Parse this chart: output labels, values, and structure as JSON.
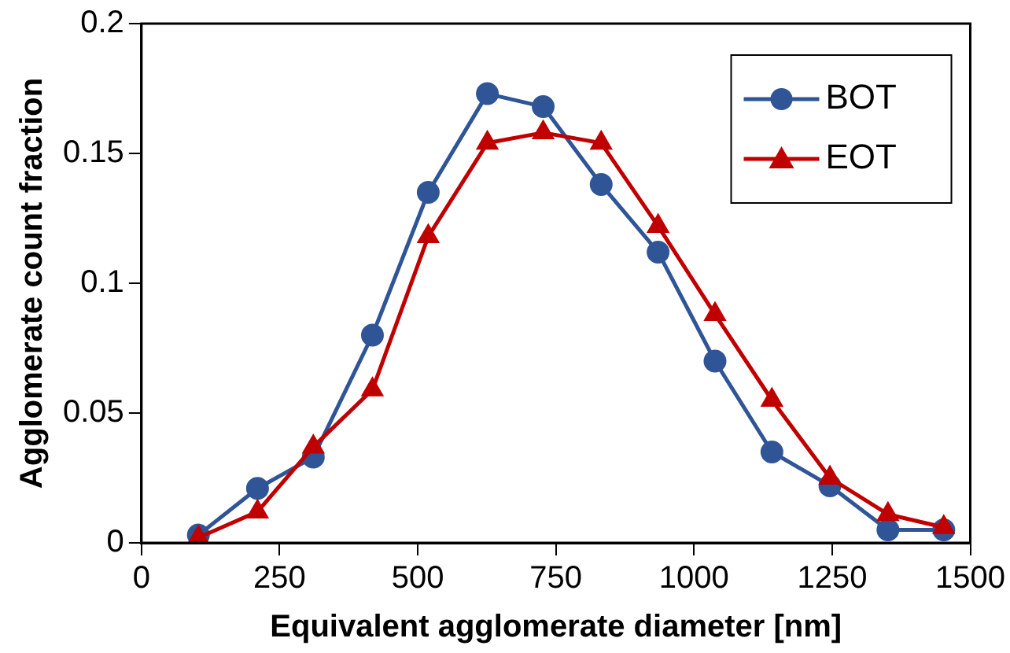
{
  "chart_data": {
    "type": "line",
    "xlabel": "Equivalent agglomerate diameter [nm]",
    "ylabel": "Agglomerate count fraction",
    "x": [
      103,
      210,
      311,
      418,
      519,
      626,
      727,
      832,
      935,
      1038,
      1141,
      1246,
      1351,
      1452
    ],
    "series": [
      {
        "name": "BOT",
        "color": "#2f5597",
        "marker": "circle",
        "values": [
          0.003,
          0.021,
          0.033,
          0.08,
          0.135,
          0.173,
          0.168,
          0.138,
          0.112,
          0.07,
          0.035,
          0.022,
          0.005,
          0.005
        ]
      },
      {
        "name": "EOT",
        "color": "#c00000",
        "marker": "triangle",
        "values": [
          0.002,
          0.012,
          0.037,
          0.059,
          0.118,
          0.154,
          0.158,
          0.154,
          0.122,
          0.088,
          0.055,
          0.025,
          0.011,
          0.006
        ]
      }
    ],
    "xlim": [
      0,
      1500
    ],
    "xticks": [
      0,
      250,
      500,
      750,
      1000,
      1250,
      1500
    ],
    "ylim": [
      0,
      0.2
    ],
    "yticks": [
      0,
      0.05,
      0.1,
      0.15,
      0.2
    ],
    "grid": false,
    "legend": "top right",
    "line_style": "solid"
  }
}
